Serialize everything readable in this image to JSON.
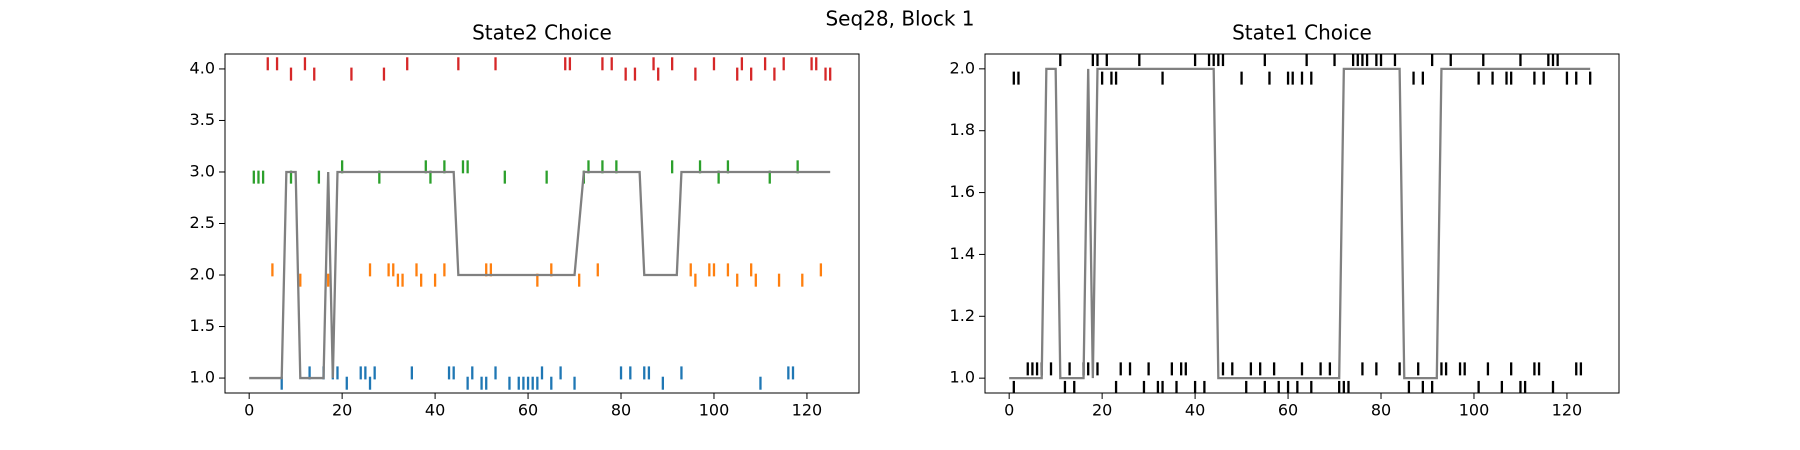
{
  "title": "Seq28, Block 1",
  "chart_data": [
    {
      "type": "scatter",
      "title": "State2 Choice",
      "xlim": [
        -5.2,
        131.2
      ],
      "xticks": [
        0,
        20,
        40,
        60,
        80,
        100,
        120
      ],
      "ylim": [
        0.855,
        4.145
      ],
      "yticks": [
        {
          "value": 1,
          "label": "1.0"
        },
        {
          "value": 1.5,
          "label": "1.5"
        },
        {
          "value": 2,
          "label": "2.0"
        },
        {
          "value": 2.5,
          "label": "2.5"
        },
        {
          "value": 3,
          "label": "3.0"
        },
        {
          "value": 3.5,
          "label": "3.5"
        },
        {
          "value": 4,
          "label": "4.0"
        }
      ],
      "series": [
        {
          "marker": "|",
          "color": "#d62728",
          "x": [
            4,
            6,
            9,
            12,
            14,
            22,
            29,
            34,
            45,
            53,
            68,
            69,
            76,
            78,
            81,
            83,
            87,
            88,
            91,
            96,
            100,
            105,
            106,
            108,
            111,
            113,
            115,
            121,
            122,
            124,
            125
          ],
          "values": [
            4.05,
            4.05,
            3.95,
            4.05,
            3.95,
            3.95,
            3.95,
            4.05,
            4.05,
            4.05,
            4.05,
            4.05,
            4.05,
            4.05,
            3.95,
            3.95,
            4.05,
            3.95,
            4.05,
            3.95,
            4.05,
            3.95,
            4.05,
            3.95,
            4.05,
            3.95,
            4.05,
            4.05,
            4.05,
            3.95,
            3.95
          ]
        },
        {
          "marker": "|",
          "color": "#2ca02c",
          "x": [
            1,
            2,
            3,
            9,
            15,
            20,
            28,
            38,
            39,
            42,
            46,
            47,
            55,
            64,
            72,
            73,
            76,
            79,
            91,
            97,
            101,
            103,
            112,
            118
          ],
          "values": [
            2.95,
            2.95,
            2.95,
            2.95,
            2.95,
            3.05,
            2.95,
            3.05,
            2.95,
            3.05,
            3.05,
            3.05,
            2.95,
            2.95,
            2.95,
            3.05,
            3.05,
            3.05,
            3.05,
            3.05,
            2.95,
            3.05,
            2.95,
            3.05
          ]
        },
        {
          "marker": "|",
          "color": "#ff7f0e",
          "x": [
            5,
            11,
            17,
            26,
            30,
            31,
            32,
            33,
            36,
            37,
            40,
            42,
            51,
            52,
            62,
            65,
            71,
            75,
            95,
            96,
            99,
            100,
            103,
            105,
            108,
            109,
            114,
            119,
            123
          ],
          "values": [
            2.05,
            1.95,
            1.95,
            2.05,
            2.05,
            2.05,
            1.95,
            1.95,
            2.05,
            1.95,
            1.95,
            2.05,
            2.05,
            2.05,
            1.95,
            2.05,
            1.95,
            2.05,
            2.05,
            1.95,
            2.05,
            2.05,
            2.05,
            1.95,
            2.05,
            1.95,
            1.95,
            1.95,
            2.05
          ]
        },
        {
          "marker": "|",
          "color": "#1f77b4",
          "x": [
            7,
            13,
            16,
            18,
            19,
            21,
            24,
            25,
            26,
            27,
            35,
            43,
            44,
            47,
            48,
            50,
            51,
            53,
            56,
            58,
            59,
            60,
            61,
            62,
            63,
            65,
            67,
            70,
            80,
            82,
            85,
            86,
            89,
            93,
            110,
            116,
            117
          ],
          "values": [
            0.95,
            1.05,
            1.05,
            1.05,
            1.05,
            0.95,
            1.05,
            1.05,
            0.95,
            1.05,
            1.05,
            1.05,
            1.05,
            0.95,
            1.05,
            0.95,
            0.95,
            1.05,
            0.95,
            0.95,
            0.95,
            0.95,
            0.95,
            0.95,
            1.05,
            0.95,
            1.05,
            0.95,
            1.05,
            1.05,
            1.05,
            1.05,
            0.95,
            1.05,
            0.95,
            1.05,
            1.05
          ]
        },
        {
          "marker": "line",
          "color": "#808080",
          "x": [
            0,
            7,
            8,
            10,
            11,
            16,
            17,
            18,
            19,
            44,
            45,
            70,
            72,
            84,
            85,
            92,
            93,
            125
          ],
          "values": [
            1,
            1,
            3,
            3,
            1,
            1,
            3,
            1,
            3,
            3,
            2,
            2,
            3,
            3,
            2,
            2,
            3,
            3
          ]
        }
      ]
    },
    {
      "type": "scatter",
      "title": "State1 Choice",
      "xlim": [
        -5.2,
        131.2
      ],
      "xticks": [
        0,
        20,
        40,
        60,
        80,
        100,
        120
      ],
      "ylim": [
        0.952,
        2.048
      ],
      "yticks": [
        {
          "value": 1,
          "label": "1.0"
        },
        {
          "value": 1.2,
          "label": "1.2"
        },
        {
          "value": 1.4,
          "label": "1.4"
        },
        {
          "value": 1.6,
          "label": "1.6"
        },
        {
          "value": 1.8,
          "label": "1.8"
        },
        {
          "value": 2,
          "label": "2.0"
        }
      ],
      "series": [
        {
          "marker": "|",
          "color": "#000000",
          "x": [
            1,
            2,
            11,
            18,
            19,
            20,
            21,
            22,
            23,
            28,
            33,
            40,
            43,
            44,
            45,
            46,
            50,
            55,
            56,
            60,
            61,
            63,
            64,
            65,
            70,
            74,
            75,
            76,
            77,
            79,
            80,
            83,
            87,
            89,
            91,
            95,
            101,
            102,
            104,
            107,
            108,
            110,
            113,
            115,
            116,
            117,
            118,
            120,
            122,
            125
          ],
          "values": [
            1.97,
            1.97,
            2.03,
            2.03,
            2.03,
            1.97,
            2.03,
            1.97,
            1.97,
            2.03,
            1.97,
            2.03,
            2.03,
            2.03,
            2.03,
            2.03,
            1.97,
            2.03,
            1.97,
            1.97,
            1.97,
            1.97,
            2.03,
            1.97,
            2.03,
            2.03,
            2.03,
            2.03,
            2.03,
            2.03,
            2.03,
            2.03,
            1.97,
            1.97,
            2.03,
            2.03,
            1.97,
            2.03,
            1.97,
            1.97,
            1.97,
            2.03,
            1.97,
            1.97,
            2.03,
            2.03,
            2.03,
            1.97,
            1.97,
            1.97
          ]
        },
        {
          "marker": "|",
          "color": "#000000",
          "x": [
            1,
            4,
            5,
            6,
            7,
            9,
            12,
            13,
            14,
            16,
            17,
            19,
            23,
            24,
            26,
            29,
            30,
            32,
            33,
            35,
            36,
            37,
            38,
            40,
            42,
            46,
            48,
            51,
            52,
            54,
            55,
            57,
            58,
            60,
            62,
            63,
            65,
            67,
            69,
            71,
            72,
            73,
            76,
            79,
            84,
            86,
            88,
            89,
            91,
            93,
            94,
            97,
            98,
            101,
            103,
            106,
            108,
            110,
            111,
            113,
            114,
            117,
            122,
            123
          ],
          "values": [
            0.97,
            1.03,
            1.03,
            1.03,
            1.03,
            1.03,
            0.97,
            1.03,
            0.97,
            1.03,
            1.03,
            1.03,
            0.97,
            1.03,
            1.03,
            0.97,
            1.03,
            0.97,
            0.97,
            1.03,
            0.97,
            1.03,
            1.03,
            0.97,
            0.97,
            1.03,
            1.03,
            0.97,
            1.03,
            1.03,
            0.97,
            1.03,
            0.97,
            0.97,
            0.97,
            1.03,
            0.97,
            1.03,
            1.03,
            0.97,
            0.97,
            0.97,
            1.03,
            1.03,
            1.03,
            0.97,
            1.03,
            0.97,
            0.97,
            1.03,
            1.03,
            1.03,
            1.03,
            0.97,
            1.03,
            0.97,
            1.03,
            0.97,
            0.97,
            1.03,
            1.03,
            0.97,
            1.03,
            1.03
          ]
        },
        {
          "marker": "line",
          "color": "#808080",
          "x": [
            0,
            7,
            8,
            10,
            11,
            16,
            17,
            18,
            19,
            44,
            45,
            71,
            72,
            84,
            85,
            92,
            93,
            125
          ],
          "values": [
            1,
            1,
            2,
            2,
            1,
            1,
            2,
            1,
            2,
            2,
            1,
            1,
            2,
            2,
            1,
            1,
            2,
            2
          ]
        }
      ]
    }
  ]
}
